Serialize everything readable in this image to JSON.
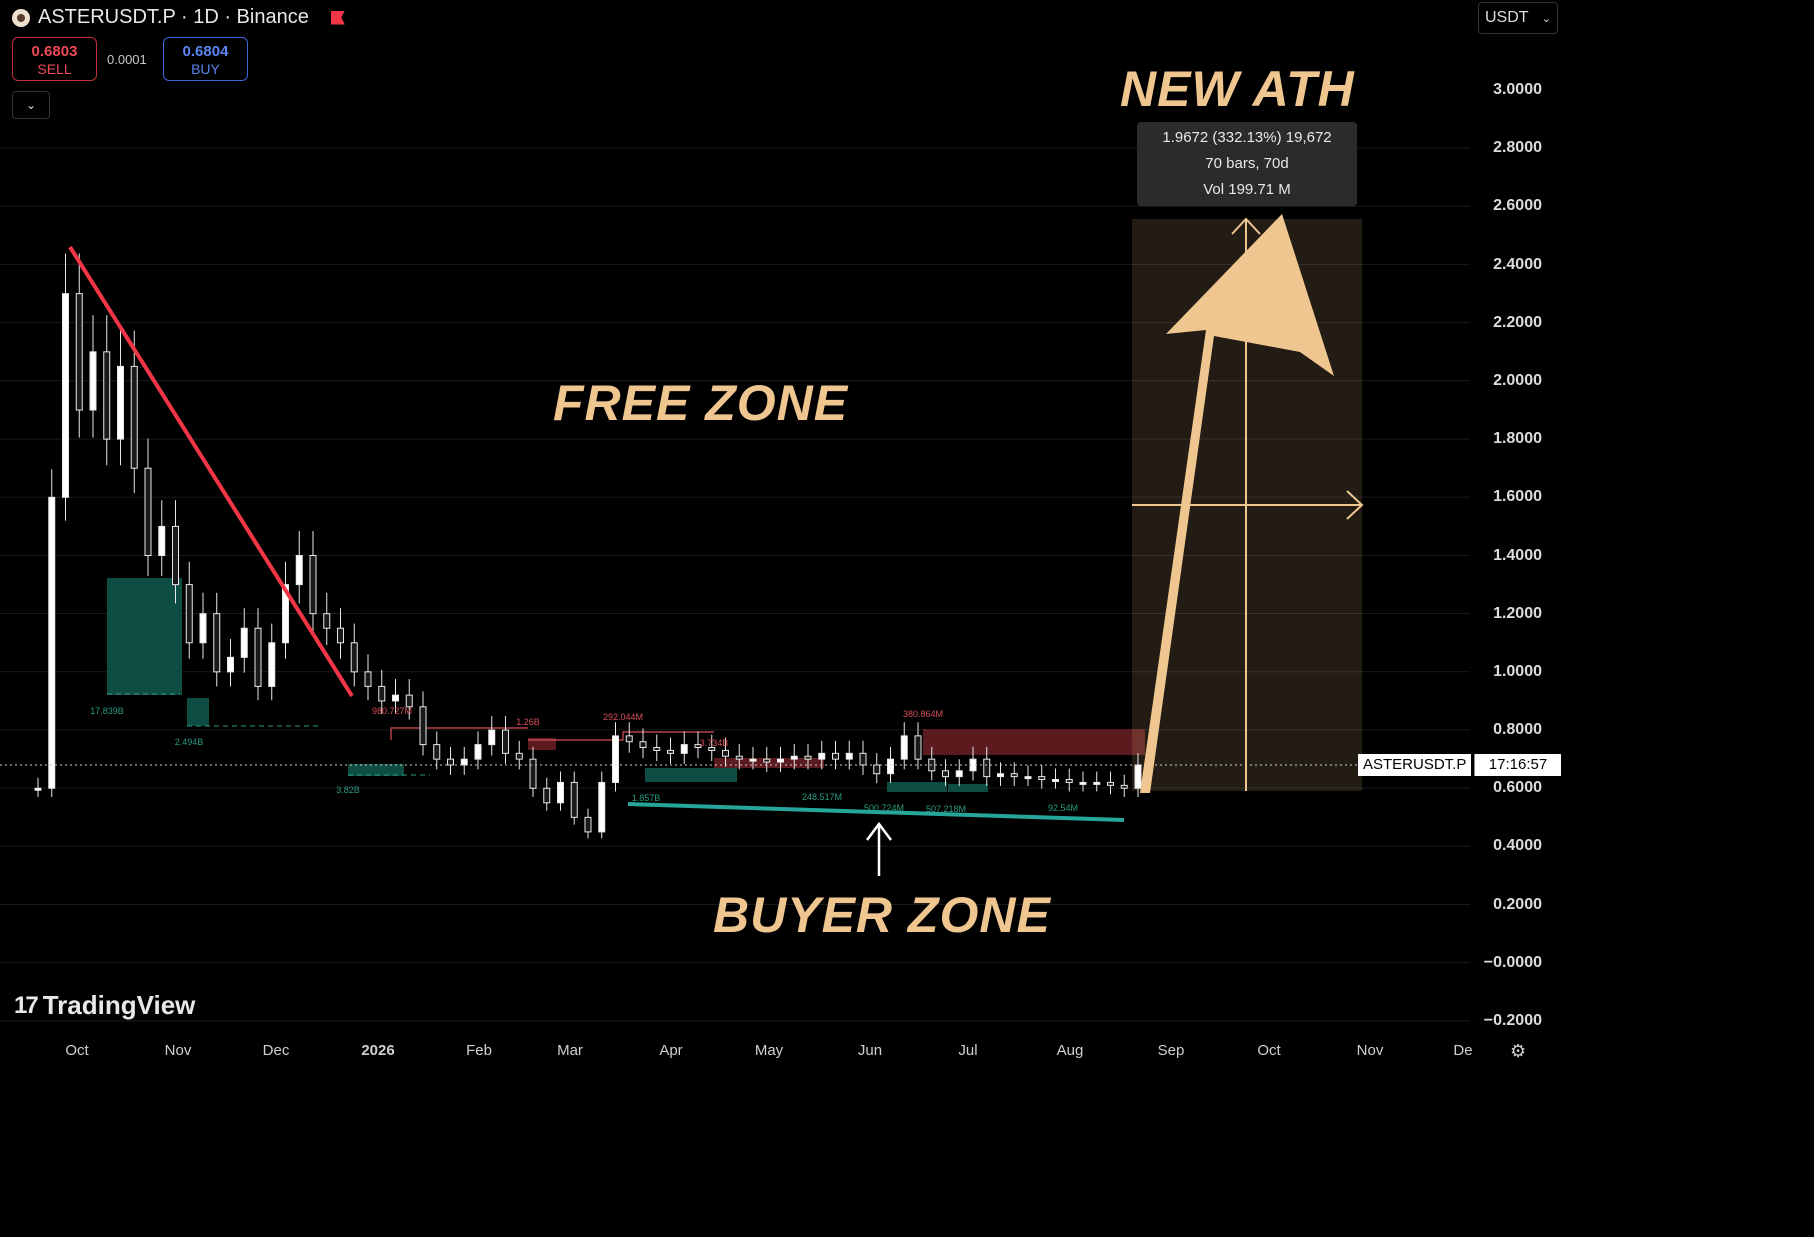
{
  "header": {
    "title": "ASTERUSDT.P · 1D · Binance",
    "sell_price": "0.6803",
    "sell_label": "SELL",
    "spread": "0.0001",
    "buy_price": "0.6804",
    "buy_label": "BUY",
    "currency": "USDT",
    "chevron_icon": "chevron-down-icon"
  },
  "price_axis": [
    "3.0000",
    "2.8000",
    "2.6000",
    "2.4000",
    "2.2000",
    "2.0000",
    "1.8000",
    "1.6000",
    "1.4000",
    "1.2000",
    "1.0000",
    "0.8000",
    "0.6000",
    "0.4000",
    "0.2000",
    "−0.0000",
    "−0.2000"
  ],
  "time_axis": [
    {
      "label": "Oct",
      "bold": false
    },
    {
      "label": "Nov",
      "bold": false
    },
    {
      "label": "Dec",
      "bold": false
    },
    {
      "label": "2026",
      "bold": true
    },
    {
      "label": "Feb",
      "bold": false
    },
    {
      "label": "Mar",
      "bold": false
    },
    {
      "label": "Apr",
      "bold": false
    },
    {
      "label": "May",
      "bold": false
    },
    {
      "label": "Jun",
      "bold": false
    },
    {
      "label": "Jul",
      "bold": false
    },
    {
      "label": "Aug",
      "bold": false
    },
    {
      "label": "Sep",
      "bold": false
    },
    {
      "label": "Oct",
      "bold": false
    },
    {
      "label": "Nov",
      "bold": false
    },
    {
      "label": "De",
      "bold": false
    }
  ],
  "annotations": {
    "new_ath": "NEW ATH",
    "free_zone": "FREE ZONE",
    "buyer_zone": "BUYER ZONE"
  },
  "tooltip": {
    "line1": "1.9672 (332.13%) 19,672",
    "line2": "70 bars, 70d",
    "line3": "Vol 199.71 M"
  },
  "price_tag": {
    "symbol": "ASTERUSDT.P",
    "countdown": "17:16:57"
  },
  "volume_labels": [
    {
      "text": "17.839B",
      "color": "green"
    },
    {
      "text": "2.494B",
      "color": "green"
    },
    {
      "text": "3.82B",
      "color": "green"
    },
    {
      "text": "980.727M",
      "color": "red"
    },
    {
      "text": "1.26B",
      "color": "red"
    },
    {
      "text": "292.044M",
      "color": "red"
    },
    {
      "text": "3.734B",
      "color": "red"
    },
    {
      "text": "380.864M",
      "color": "red"
    },
    {
      "text": "1.857B",
      "color": "green"
    },
    {
      "text": "248.517M",
      "color": "green"
    },
    {
      "text": "500.724M",
      "color": "green"
    },
    {
      "text": "507.218M",
      "color": "green"
    },
    {
      "text": "92.54M",
      "color": "green"
    }
  ],
  "branding": "TradingView",
  "colors": {
    "downtrend_line": "#f23645",
    "support_line": "#26a69a",
    "annotation": "#f0c690",
    "demand_zone": "#0e4d42",
    "supply_zone": "#5a1a1e"
  },
  "chart_data": {
    "type": "candlestick",
    "symbol": "ASTERUSDT.P",
    "interval": "1D",
    "exchange": "Binance",
    "ylim": [
      -0.2,
      3.0
    ],
    "current_price": 0.6803,
    "x_period": [
      "Oct",
      "Nov",
      "Dec",
      "2026",
      "Feb",
      "Mar",
      "Apr",
      "May",
      "Jun",
      "Jul",
      "Aug",
      "Sep",
      "Oct",
      "Nov",
      "De"
    ],
    "close_series": [
      0.6,
      1.6,
      2.3,
      1.9,
      2.1,
      1.8,
      2.05,
      1.7,
      1.4,
      1.5,
      1.3,
      1.1,
      1.2,
      1.0,
      1.05,
      1.15,
      0.95,
      1.1,
      1.3,
      1.4,
      1.2,
      1.15,
      1.1,
      1.0,
      0.95,
      0.9,
      0.92,
      0.88,
      0.75,
      0.7,
      0.68,
      0.7,
      0.75,
      0.8,
      0.72,
      0.7,
      0.6,
      0.55,
      0.62,
      0.5,
      0.45,
      0.62,
      0.78,
      0.76,
      0.74,
      0.73,
      0.72,
      0.75,
      0.74,
      0.73,
      0.71,
      0.7,
      0.7,
      0.69,
      0.7,
      0.71,
      0.7,
      0.72,
      0.7,
      0.72,
      0.68,
      0.65,
      0.7,
      0.78,
      0.7,
      0.66,
      0.64,
      0.66,
      0.7,
      0.64,
      0.65,
      0.64,
      0.64,
      0.63,
      0.63,
      0.62,
      0.62,
      0.62,
      0.61,
      0.6,
      0.68
    ]
  }
}
